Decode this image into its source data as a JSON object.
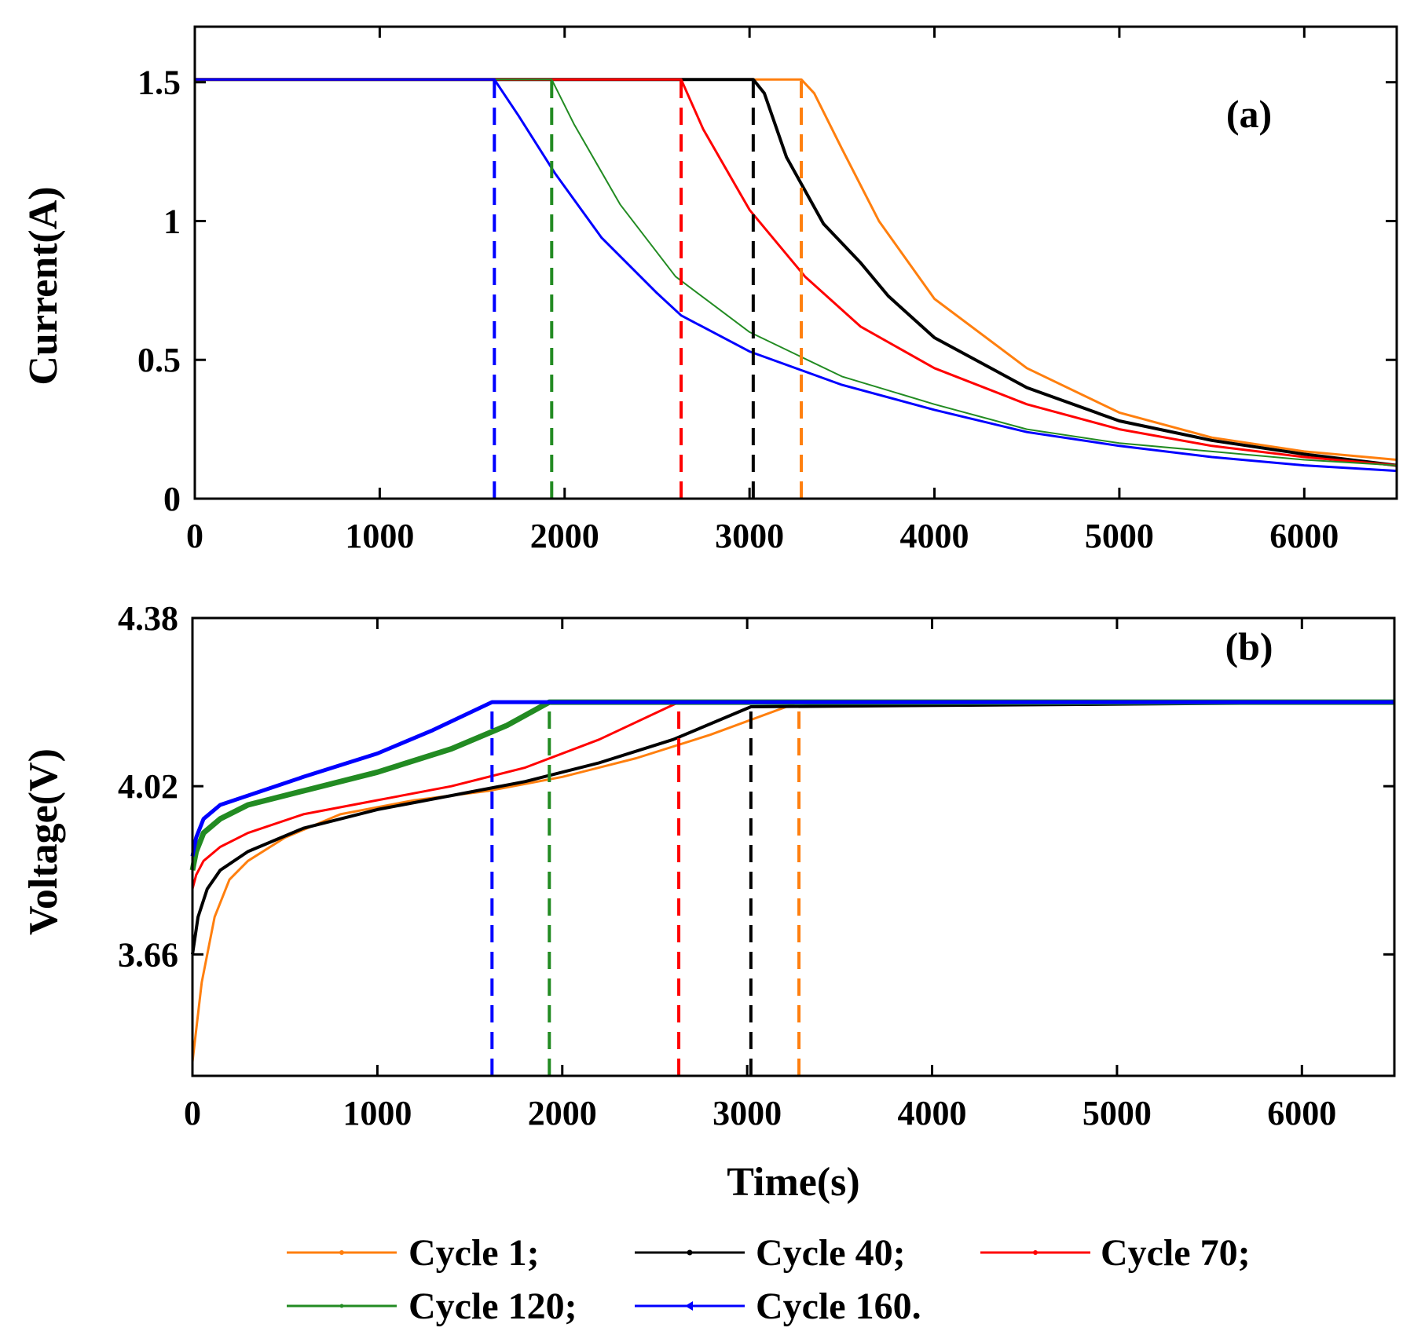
{
  "chart_data": [
    {
      "type": "line",
      "panel_label": "(a)",
      "title": "",
      "xlabel": "",
      "ylabel": "Current(A)",
      "xlim": [
        0,
        6500
      ],
      "ylim": [
        0,
        1.7
      ],
      "xticks": [
        0,
        1000,
        2000,
        3000,
        4000,
        5000,
        6000
      ],
      "xtick_labels": [
        "0",
        "1000",
        "2000",
        "3000",
        "4000",
        "5000",
        "6000"
      ],
      "yticks": [
        0,
        0.5,
        1,
        1.5
      ],
      "ytick_labels": [
        "0",
        "0.5",
        "1",
        "1.5"
      ],
      "grid": false,
      "vlines": [
        {
          "x": 1620,
          "series": "Cycle 160."
        },
        {
          "x": 1930,
          "series": "Cycle 120;"
        },
        {
          "x": 2630,
          "series": "Cycle 70;"
        },
        {
          "x": 3020,
          "series": "Cycle 40;"
        },
        {
          "x": 3280,
          "series": "Cycle 1;"
        }
      ],
      "series": [
        {
          "name": "Cycle 1;",
          "color": "#ff7f0e",
          "x": [
            0,
            3280,
            3350,
            3500,
            3700,
            4000,
            4500,
            5000,
            5500,
            6000,
            6500
          ],
          "y": [
            1.51,
            1.51,
            1.46,
            1.26,
            1.0,
            0.72,
            0.47,
            0.31,
            0.22,
            0.17,
            0.14
          ]
        },
        {
          "name": "Cycle 40;",
          "color": "#000000",
          "x": [
            0,
            3020,
            3080,
            3200,
            3400,
            3600,
            3750,
            4000,
            4500,
            5000,
            5500,
            6000,
            6500
          ],
          "y": [
            1.51,
            1.51,
            1.46,
            1.23,
            0.99,
            0.85,
            0.73,
            0.58,
            0.4,
            0.28,
            0.21,
            0.16,
            0.12
          ]
        },
        {
          "name": "Cycle 70;",
          "color": "#ff0000",
          "x": [
            0,
            2630,
            2750,
            3000,
            3300,
            3600,
            4000,
            4500,
            5000,
            5500,
            6000,
            6500
          ],
          "y": [
            1.51,
            1.51,
            1.33,
            1.04,
            0.8,
            0.62,
            0.47,
            0.34,
            0.25,
            0.19,
            0.15,
            0.12
          ]
        },
        {
          "name": "Cycle 120;",
          "color": "#228b22",
          "x": [
            0,
            1930,
            2050,
            2300,
            2600,
            3000,
            3500,
            4000,
            4500,
            5000,
            5500,
            6000,
            6500
          ],
          "y": [
            1.51,
            1.51,
            1.35,
            1.06,
            0.8,
            0.6,
            0.44,
            0.34,
            0.25,
            0.2,
            0.17,
            0.14,
            0.12
          ]
        },
        {
          "name": "Cycle 160.",
          "color": "#0000ff",
          "x": [
            0,
            1620,
            1750,
            1950,
            2200,
            2500,
            2630,
            3000,
            3500,
            4000,
            4500,
            5000,
            5500,
            6000,
            6500
          ],
          "y": [
            1.51,
            1.51,
            1.38,
            1.17,
            0.94,
            0.74,
            0.66,
            0.53,
            0.41,
            0.32,
            0.24,
            0.19,
            0.15,
            0.12,
            0.1
          ]
        }
      ]
    },
    {
      "type": "line",
      "panel_label": "(b)",
      "title": "",
      "xlabel": "Time(s)",
      "ylabel": "Voltage(V)",
      "xlim": [
        0,
        6500
      ],
      "ylim": [
        3.4,
        4.38
      ],
      "xticks": [
        0,
        1000,
        2000,
        3000,
        4000,
        5000,
        6000
      ],
      "xtick_labels": [
        "0",
        "1000",
        "2000",
        "3000",
        "4000",
        "5000",
        "6000"
      ],
      "yticks": [
        3.66,
        4.02,
        4.38
      ],
      "ytick_labels": [
        "3.66",
        "4.02",
        "4.38"
      ],
      "grid": false,
      "vlines": [
        {
          "x": 1620,
          "series": "Cycle 160."
        },
        {
          "x": 1930,
          "series": "Cycle 120;"
        },
        {
          "x": 2630,
          "series": "Cycle 70;"
        },
        {
          "x": 3020,
          "series": "Cycle 40;"
        },
        {
          "x": 3280,
          "series": "Cycle 1;"
        }
      ],
      "series": [
        {
          "name": "Cycle 1;",
          "color": "#ff7f0e",
          "x": [
            0,
            50,
            120,
            200,
            300,
            500,
            800,
            1200,
            1600,
            2000,
            2400,
            2800,
            3280,
            3500,
            6500
          ],
          "y": [
            3.43,
            3.6,
            3.74,
            3.82,
            3.86,
            3.91,
            3.96,
            3.99,
            4.01,
            4.04,
            4.08,
            4.13,
            4.2,
            4.2,
            4.2
          ]
        },
        {
          "name": "Cycle 40;",
          "color": "#000000",
          "x": [
            0,
            30,
            80,
            150,
            300,
            600,
            1000,
            1400,
            1800,
            2200,
            2600,
            3020,
            6500
          ],
          "y": [
            3.66,
            3.74,
            3.8,
            3.84,
            3.88,
            3.93,
            3.97,
            4.0,
            4.03,
            4.07,
            4.12,
            4.19,
            4.2
          ]
        },
        {
          "name": "Cycle 70;",
          "color": "#ff0000",
          "x": [
            0,
            20,
            60,
            150,
            300,
            600,
            1000,
            1400,
            1800,
            2200,
            2630,
            6500
          ],
          "y": [
            3.8,
            3.83,
            3.86,
            3.89,
            3.92,
            3.96,
            3.99,
            4.02,
            4.06,
            4.12,
            4.2,
            4.2
          ]
        },
        {
          "name": "Cycle 120;",
          "color": "#228b22",
          "x": [
            0,
            20,
            60,
            150,
            300,
            600,
            1000,
            1400,
            1700,
            1930,
            6500
          ],
          "y": [
            3.84,
            3.88,
            3.92,
            3.95,
            3.98,
            4.01,
            4.05,
            4.1,
            4.15,
            4.2,
            4.2
          ]
        },
        {
          "name": "Cycle 160.",
          "color": "#0000ff",
          "x": [
            0,
            20,
            60,
            150,
            300,
            600,
            1000,
            1300,
            1620,
            6500
          ],
          "y": [
            3.87,
            3.91,
            3.95,
            3.98,
            4.0,
            4.04,
            4.09,
            4.14,
            4.2,
            4.2
          ]
        }
      ]
    }
  ],
  "legend": {
    "placement": "bottom",
    "entries": [
      {
        "label": "Cycle 1;",
        "color": "#ff7f0e"
      },
      {
        "label": "Cycle 40;",
        "color": "#000000"
      },
      {
        "label": "Cycle 70;",
        "color": "#ff0000"
      },
      {
        "label": "Cycle 120;",
        "color": "#228b22"
      },
      {
        "label": "Cycle 160.",
        "color": "#0000ff"
      }
    ]
  }
}
